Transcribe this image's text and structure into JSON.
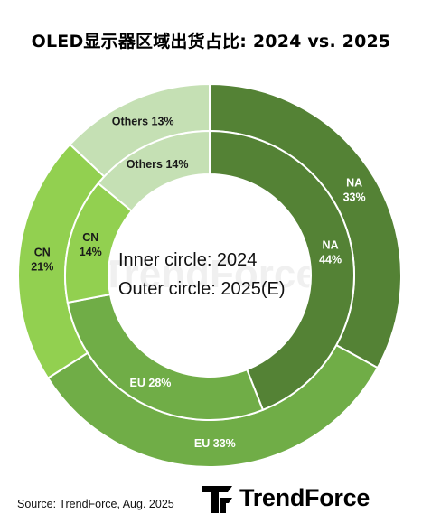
{
  "title": "OLED显示器区域出货占比: 2024 vs. 2025",
  "center_text": {
    "line1": "Inner circle: 2024",
    "line2": "Outer circle: 2025(E)"
  },
  "source": "Source: TrendForce, Aug. 2025",
  "brand": {
    "name": "TrendForce",
    "logo_color": "#000000",
    "watermark": "TrendForce"
  },
  "chart_data": {
    "type": "pie",
    "categories": [
      "NA",
      "EU",
      "CN",
      "Others"
    ],
    "series": [
      {
        "year": "2025",
        "labels": [
          "NA\n33%",
          "EU 33%",
          "CN\n21%",
          "Others 13%"
        ],
        "values": [
          33,
          33,
          21,
          13
        ]
      },
      {
        "year": "2024",
        "labels": [
          "NA\n44%",
          "EU 28%",
          "CN\n14%",
          "Others 14%"
        ],
        "values": [
          44,
          28,
          14,
          14
        ]
      }
    ],
    "colors": [
      "#548235",
      "#70ad47",
      "#92d050",
      "#c5e0b4"
    ]
  }
}
